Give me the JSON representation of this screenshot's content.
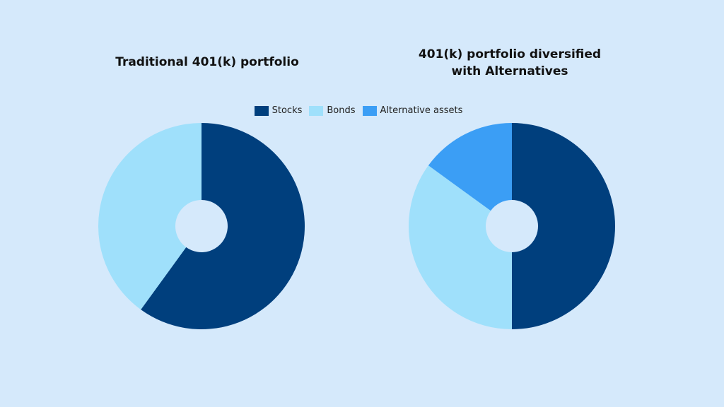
{
  "chart_data": [
    {
      "type": "pie",
      "title": "Traditional 401(k) portfolio",
      "categories": [
        "Stocks",
        "Bonds"
      ],
      "values": [
        60,
        40
      ],
      "colors": [
        "#003f7d",
        "#9fe0fb"
      ]
    },
    {
      "type": "pie",
      "title": "401(k) portfolio diversified with Alternatives",
      "categories": [
        "Stocks",
        "Bonds",
        "Alternative assets"
      ],
      "values": [
        50,
        35,
        15
      ],
      "colors": [
        "#003f7d",
        "#9fe0fb",
        "#3b9ef5"
      ]
    }
  ]
}
